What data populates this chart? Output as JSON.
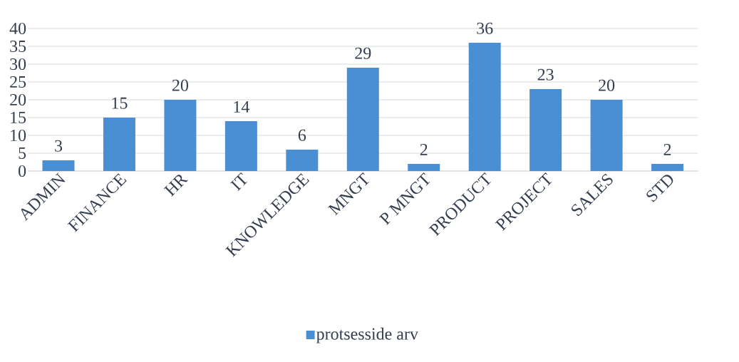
{
  "chart_data": {
    "type": "bar",
    "categories": [
      "ADMIN",
      "FINANCE",
      "HR",
      "IT",
      "KNOWLEDGE",
      "MNGT",
      "P MNGT",
      "PRODUCT",
      "PROJECT",
      "SALES",
      "STD"
    ],
    "series": [
      {
        "name": "protsesside arv",
        "color": "#4a8fd4",
        "values": [
          3,
          15,
          20,
          14,
          6,
          29,
          2,
          36,
          23,
          20,
          2
        ]
      }
    ],
    "ylim": [
      0,
      40
    ],
    "yticks": [
      0,
      5,
      10,
      15,
      20,
      25,
      30,
      35,
      40
    ],
    "grid": "y",
    "legend": "bottom",
    "data_labels": true
  }
}
